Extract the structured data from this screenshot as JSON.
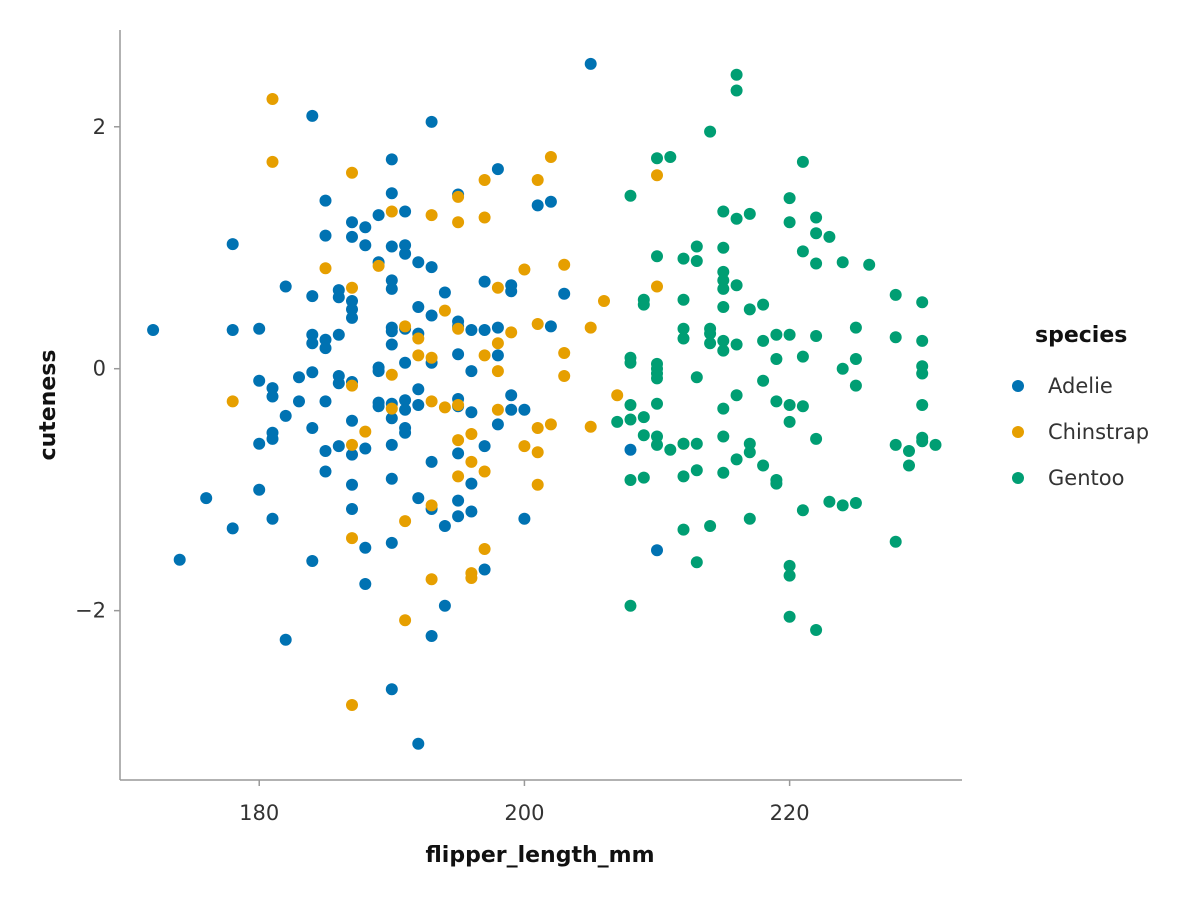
{
  "chart_data": {
    "type": "scatter",
    "title": "",
    "xlabel": "flipper_length_mm",
    "ylabel": "cuteness",
    "xlim": [
      169.5,
      233
    ],
    "ylim": [
      -3.4,
      2.8
    ],
    "xticks": [
      180,
      200,
      220
    ],
    "yticks": [
      2,
      0,
      -2
    ],
    "xtick_labels": [
      "180",
      "200",
      "220"
    ],
    "ytick_labels": [
      "2",
      "0",
      "−2"
    ],
    "grid": false,
    "legend": {
      "title": "species",
      "position": "right"
    },
    "series": [
      {
        "name": "Adelie",
        "color": "#0072B2",
        "points": [
          [
            172,
            0.32
          ],
          [
            174,
            -1.58
          ],
          [
            176,
            -1.07
          ],
          [
            178,
            1.03
          ],
          [
            178,
            0.32
          ],
          [
            178,
            -1.32
          ],
          [
            180,
            0.33
          ],
          [
            180,
            -0.1
          ],
          [
            180,
            -0.62
          ],
          [
            180,
            -1.0
          ],
          [
            181,
            -0.16
          ],
          [
            181,
            -0.23
          ],
          [
            181,
            -0.53
          ],
          [
            181,
            -0.58
          ],
          [
            181,
            -1.24
          ],
          [
            182,
            0.68
          ],
          [
            182,
            -0.39
          ],
          [
            182,
            -2.24
          ],
          [
            183,
            -0.07
          ],
          [
            183,
            -0.27
          ],
          [
            184,
            2.09
          ],
          [
            184,
            0.6
          ],
          [
            184,
            0.28
          ],
          [
            184,
            0.21
          ],
          [
            184,
            -0.03
          ],
          [
            184,
            -0.49
          ],
          [
            184,
            -1.59
          ],
          [
            185,
            1.39
          ],
          [
            185,
            1.1
          ],
          [
            185,
            0.24
          ],
          [
            185,
            0.17
          ],
          [
            185,
            -0.27
          ],
          [
            185,
            -0.68
          ],
          [
            185,
            -0.85
          ],
          [
            186,
            0.65
          ],
          [
            186,
            0.59
          ],
          [
            186,
            0.28
          ],
          [
            186,
            -0.06
          ],
          [
            186,
            -0.12
          ],
          [
            186,
            -0.64
          ],
          [
            187,
            1.21
          ],
          [
            187,
            1.09
          ],
          [
            187,
            0.56
          ],
          [
            187,
            0.49
          ],
          [
            187,
            0.42
          ],
          [
            187,
            -0.11
          ],
          [
            187,
            -0.43
          ],
          [
            187,
            -0.71
          ],
          [
            187,
            -0.96
          ],
          [
            187,
            -1.16
          ],
          [
            188,
            1.17
          ],
          [
            188,
            1.02
          ],
          [
            188,
            -0.66
          ],
          [
            188,
            -1.48
          ],
          [
            188,
            -1.78
          ],
          [
            189,
            1.27
          ],
          [
            189,
            0.88
          ],
          [
            189,
            0.01
          ],
          [
            189,
            -0.02
          ],
          [
            189,
            -0.28
          ],
          [
            189,
            -0.31
          ],
          [
            190,
            1.73
          ],
          [
            190,
            1.45
          ],
          [
            190,
            1.01
          ],
          [
            190,
            0.73
          ],
          [
            190,
            0.66
          ],
          [
            190,
            0.34
          ],
          [
            190,
            0.31
          ],
          [
            190,
            0.2
          ],
          [
            190,
            -0.29
          ],
          [
            190,
            -0.41
          ],
          [
            190,
            -0.63
          ],
          [
            190,
            -0.91
          ],
          [
            190,
            -1.44
          ],
          [
            190,
            -2.65
          ],
          [
            191,
            1.3
          ],
          [
            191,
            1.02
          ],
          [
            191,
            0.95
          ],
          [
            191,
            0.33
          ],
          [
            191,
            0.05
          ],
          [
            191,
            -0.26
          ],
          [
            191,
            -0.34
          ],
          [
            191,
            -0.49
          ],
          [
            191,
            -0.53
          ],
          [
            192,
            0.88
          ],
          [
            192,
            0.51
          ],
          [
            192,
            0.29
          ],
          [
            192,
            -0.17
          ],
          [
            192,
            -0.3
          ],
          [
            192,
            -1.07
          ],
          [
            192,
            -3.1
          ],
          [
            193,
            2.04
          ],
          [
            193,
            0.84
          ],
          [
            193,
            0.44
          ],
          [
            193,
            0.05
          ],
          [
            193,
            -0.77
          ],
          [
            193,
            -1.16
          ],
          [
            193,
            -2.21
          ],
          [
            194,
            0.63
          ],
          [
            194,
            -1.3
          ],
          [
            194,
            -1.96
          ],
          [
            195,
            1.44
          ],
          [
            195,
            0.39
          ],
          [
            195,
            0.35
          ],
          [
            195,
            0.12
          ],
          [
            195,
            -0.25
          ],
          [
            195,
            -0.31
          ],
          [
            195,
            -0.7
          ],
          [
            195,
            -1.09
          ],
          [
            195,
            -1.22
          ],
          [
            196,
            0.32
          ],
          [
            196,
            -0.02
          ],
          [
            196,
            -0.36
          ],
          [
            196,
            -0.95
          ],
          [
            196,
            -1.18
          ],
          [
            197,
            0.72
          ],
          [
            197,
            0.32
          ],
          [
            197,
            -0.64
          ],
          [
            197,
            -1.66
          ],
          [
            198,
            1.65
          ],
          [
            198,
            0.34
          ],
          [
            198,
            0.11
          ],
          [
            198,
            -0.46
          ],
          [
            199,
            0.69
          ],
          [
            199,
            0.64
          ],
          [
            199,
            -0.22
          ],
          [
            199,
            -0.34
          ],
          [
            200,
            -0.34
          ],
          [
            200,
            -1.24
          ],
          [
            201,
            1.35
          ],
          [
            202,
            1.38
          ],
          [
            202,
            0.35
          ],
          [
            203,
            0.62
          ],
          [
            205,
            2.52
          ],
          [
            208,
            -0.67
          ],
          [
            210,
            -1.5
          ]
        ]
      },
      {
        "name": "Chinstrap",
        "color": "#E69F00",
        "points": [
          [
            178,
            -0.27
          ],
          [
            181,
            2.23
          ],
          [
            181,
            1.71
          ],
          [
            185,
            0.83
          ],
          [
            187,
            1.62
          ],
          [
            187,
            0.67
          ],
          [
            187,
            -0.14
          ],
          [
            187,
            -0.63
          ],
          [
            187,
            -1.4
          ],
          [
            187,
            -2.78
          ],
          [
            188,
            -0.52
          ],
          [
            189,
            0.85
          ],
          [
            190,
            1.3
          ],
          [
            190,
            -0.05
          ],
          [
            190,
            -0.33
          ],
          [
            191,
            0.35
          ],
          [
            191,
            -1.26
          ],
          [
            191,
            -2.08
          ],
          [
            192,
            0.25
          ],
          [
            192,
            0.11
          ],
          [
            193,
            1.27
          ],
          [
            193,
            0.09
          ],
          [
            193,
            -0.27
          ],
          [
            193,
            -1.13
          ],
          [
            193,
            -1.74
          ],
          [
            194,
            0.48
          ],
          [
            194,
            -0.32
          ],
          [
            195,
            1.42
          ],
          [
            195,
            1.21
          ],
          [
            195,
            0.33
          ],
          [
            195,
            -0.3
          ],
          [
            195,
            -0.59
          ],
          [
            195,
            -0.89
          ],
          [
            196,
            -0.54
          ],
          [
            196,
            -0.77
          ],
          [
            196,
            -1.69
          ],
          [
            196,
            -1.73
          ],
          [
            197,
            1.56
          ],
          [
            197,
            1.25
          ],
          [
            197,
            0.11
          ],
          [
            197,
            -0.85
          ],
          [
            197,
            -1.49
          ],
          [
            198,
            0.67
          ],
          [
            198,
            0.21
          ],
          [
            198,
            -0.02
          ],
          [
            198,
            -0.34
          ],
          [
            199,
            0.3
          ],
          [
            200,
            0.82
          ],
          [
            200,
            -0.64
          ],
          [
            201,
            1.56
          ],
          [
            201,
            0.37
          ],
          [
            201,
            -0.49
          ],
          [
            201,
            -0.69
          ],
          [
            201,
            -0.96
          ],
          [
            202,
            1.75
          ],
          [
            202,
            -0.46
          ],
          [
            203,
            0.86
          ],
          [
            203,
            0.13
          ],
          [
            203,
            -0.06
          ],
          [
            205,
            0.34
          ],
          [
            205,
            -0.48
          ],
          [
            206,
            0.56
          ],
          [
            207,
            -0.22
          ],
          [
            210,
            1.6
          ],
          [
            210,
            0.68
          ],
          [
            212,
            -0.62
          ]
        ]
      },
      {
        "name": "Gentoo",
        "color": "#009E73",
        "points": [
          [
            207,
            -0.44
          ],
          [
            208,
            1.43
          ],
          [
            208,
            0.09
          ],
          [
            208,
            0.05
          ],
          [
            208,
            -0.3
          ],
          [
            208,
            -0.42
          ],
          [
            208,
            -0.92
          ],
          [
            208,
            -1.96
          ],
          [
            209,
            0.57
          ],
          [
            209,
            0.53
          ],
          [
            209,
            -0.4
          ],
          [
            209,
            -0.55
          ],
          [
            209,
            -0.9
          ],
          [
            210,
            1.74
          ],
          [
            210,
            0.93
          ],
          [
            210,
            0.04
          ],
          [
            210,
            0.0
          ],
          [
            210,
            -0.04
          ],
          [
            210,
            -0.08
          ],
          [
            210,
            -0.29
          ],
          [
            210,
            -0.56
          ],
          [
            210,
            -0.63
          ],
          [
            211,
            1.75
          ],
          [
            211,
            -0.67
          ],
          [
            212,
            0.91
          ],
          [
            212,
            0.57
          ],
          [
            212,
            0.33
          ],
          [
            212,
            0.25
          ],
          [
            212,
            -0.62
          ],
          [
            212,
            -0.89
          ],
          [
            212,
            -1.33
          ],
          [
            213,
            1.01
          ],
          [
            213,
            0.89
          ],
          [
            213,
            -0.07
          ],
          [
            213,
            -0.62
          ],
          [
            213,
            -0.84
          ],
          [
            213,
            -1.6
          ],
          [
            214,
            1.96
          ],
          [
            214,
            0.33
          ],
          [
            214,
            0.29
          ],
          [
            214,
            0.21
          ],
          [
            214,
            -1.3
          ],
          [
            215,
            1.3
          ],
          [
            215,
            1.0
          ],
          [
            215,
            0.8
          ],
          [
            215,
            0.73
          ],
          [
            215,
            0.66
          ],
          [
            215,
            0.51
          ],
          [
            215,
            0.23
          ],
          [
            215,
            0.15
          ],
          [
            215,
            -0.33
          ],
          [
            215,
            -0.56
          ],
          [
            215,
            -0.86
          ],
          [
            216,
            2.43
          ],
          [
            216,
            2.3
          ],
          [
            216,
            1.24
          ],
          [
            216,
            0.69
          ],
          [
            216,
            0.2
          ],
          [
            216,
            -0.22
          ],
          [
            216,
            -0.75
          ],
          [
            217,
            1.28
          ],
          [
            217,
            0.49
          ],
          [
            217,
            -0.62
          ],
          [
            217,
            -0.69
          ],
          [
            217,
            -1.24
          ],
          [
            218,
            0.53
          ],
          [
            218,
            0.23
          ],
          [
            218,
            -0.1
          ],
          [
            218,
            -0.8
          ],
          [
            219,
            0.28
          ],
          [
            219,
            0.08
          ],
          [
            219,
            -0.27
          ],
          [
            219,
            -0.92
          ],
          [
            219,
            -0.95
          ],
          [
            220,
            1.41
          ],
          [
            220,
            1.21
          ],
          [
            220,
            0.28
          ],
          [
            220,
            -0.3
          ],
          [
            220,
            -0.44
          ],
          [
            220,
            -1.63
          ],
          [
            220,
            -1.71
          ],
          [
            220,
            -2.05
          ],
          [
            221,
            1.71
          ],
          [
            221,
            0.97
          ],
          [
            221,
            0.1
          ],
          [
            221,
            -0.31
          ],
          [
            221,
            -1.17
          ],
          [
            222,
            1.25
          ],
          [
            222,
            1.12
          ],
          [
            222,
            0.87
          ],
          [
            222,
            0.27
          ],
          [
            222,
            -0.58
          ],
          [
            222,
            -2.16
          ],
          [
            223,
            1.09
          ],
          [
            223,
            -1.1
          ],
          [
            224,
            0.88
          ],
          [
            224,
            0.0
          ],
          [
            224,
            -1.13
          ],
          [
            225,
            0.34
          ],
          [
            225,
            0.08
          ],
          [
            225,
            -0.14
          ],
          [
            225,
            -1.11
          ],
          [
            226,
            0.86
          ],
          [
            228,
            0.61
          ],
          [
            228,
            0.26
          ],
          [
            228,
            -0.63
          ],
          [
            228,
            -1.43
          ],
          [
            229,
            -0.68
          ],
          [
            229,
            -0.8
          ],
          [
            230,
            0.55
          ],
          [
            230,
            0.23
          ],
          [
            230,
            0.02
          ],
          [
            230,
            -0.04
          ],
          [
            230,
            -0.3
          ],
          [
            230,
            -0.57
          ],
          [
            230,
            -0.6
          ],
          [
            231,
            -0.63
          ]
        ]
      }
    ]
  }
}
